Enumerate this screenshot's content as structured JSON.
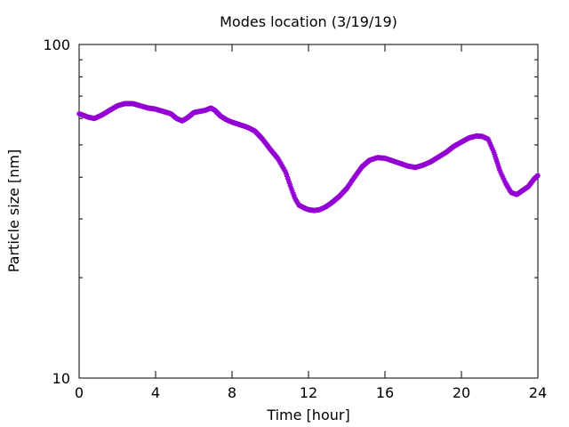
{
  "chart_data": {
    "type": "scatter",
    "title": "Modes location (3/19/19)",
    "xlabel": "Time [hour]",
    "ylabel": "Particle size [nm]",
    "xlim": [
      0,
      24
    ],
    "ylim": [
      10,
      100
    ],
    "yscale": "log",
    "grid": false,
    "marker": "star",
    "x_ticks": [
      0,
      4,
      8,
      12,
      16,
      20,
      24
    ],
    "x_tick_labels": [
      "0",
      "4",
      "8",
      "12",
      "16",
      "20",
      "24"
    ],
    "y_ticks": [
      10,
      100
    ],
    "y_tick_labels": [
      "10",
      "100"
    ],
    "series": [
      {
        "color": "#9400d3",
        "x": [
          0.0,
          0.5,
          0.8,
          1.2,
          1.6,
          2.0,
          2.4,
          2.8,
          3.2,
          3.6,
          4.0,
          4.4,
          4.8,
          5.1,
          5.4,
          5.7,
          6.0,
          6.3,
          6.6,
          6.9,
          7.1,
          7.4,
          7.7,
          8.0,
          8.4,
          8.8,
          9.2,
          9.6,
          10.0,
          10.4,
          10.8,
          11.1,
          11.3,
          11.5,
          11.8,
          12.0,
          12.3,
          12.6,
          12.9,
          13.2,
          13.6,
          14.0,
          14.4,
          14.8,
          15.2,
          15.6,
          16.0,
          16.4,
          16.8,
          17.2,
          17.6,
          18.0,
          18.4,
          18.8,
          19.2,
          19.6,
          20.0,
          20.4,
          20.8,
          21.1,
          21.4,
          21.7,
          22.0,
          22.3,
          22.6,
          22.9,
          23.2,
          23.5,
          23.8,
          24.0
        ],
        "y": [
          62.0,
          60.5,
          60.0,
          61.5,
          63.5,
          65.5,
          66.5,
          66.5,
          65.5,
          64.5,
          64.0,
          63.0,
          62.0,
          60.0,
          59.0,
          60.5,
          62.5,
          63.0,
          63.5,
          64.5,
          63.5,
          61.0,
          59.5,
          58.5,
          57.5,
          56.5,
          55.0,
          52.0,
          48.5,
          45.5,
          41.5,
          37.0,
          34.5,
          33.0,
          32.3,
          32.0,
          31.8,
          32.0,
          32.6,
          33.5,
          35.0,
          37.0,
          40.0,
          43.0,
          45.0,
          45.8,
          45.6,
          44.8,
          44.0,
          43.2,
          42.8,
          43.5,
          44.5,
          46.0,
          47.5,
          49.5,
          51.0,
          52.5,
          53.2,
          53.0,
          52.0,
          47.5,
          42.0,
          38.5,
          36.0,
          35.5,
          36.5,
          37.5,
          39.5,
          40.5
        ]
      }
    ]
  }
}
